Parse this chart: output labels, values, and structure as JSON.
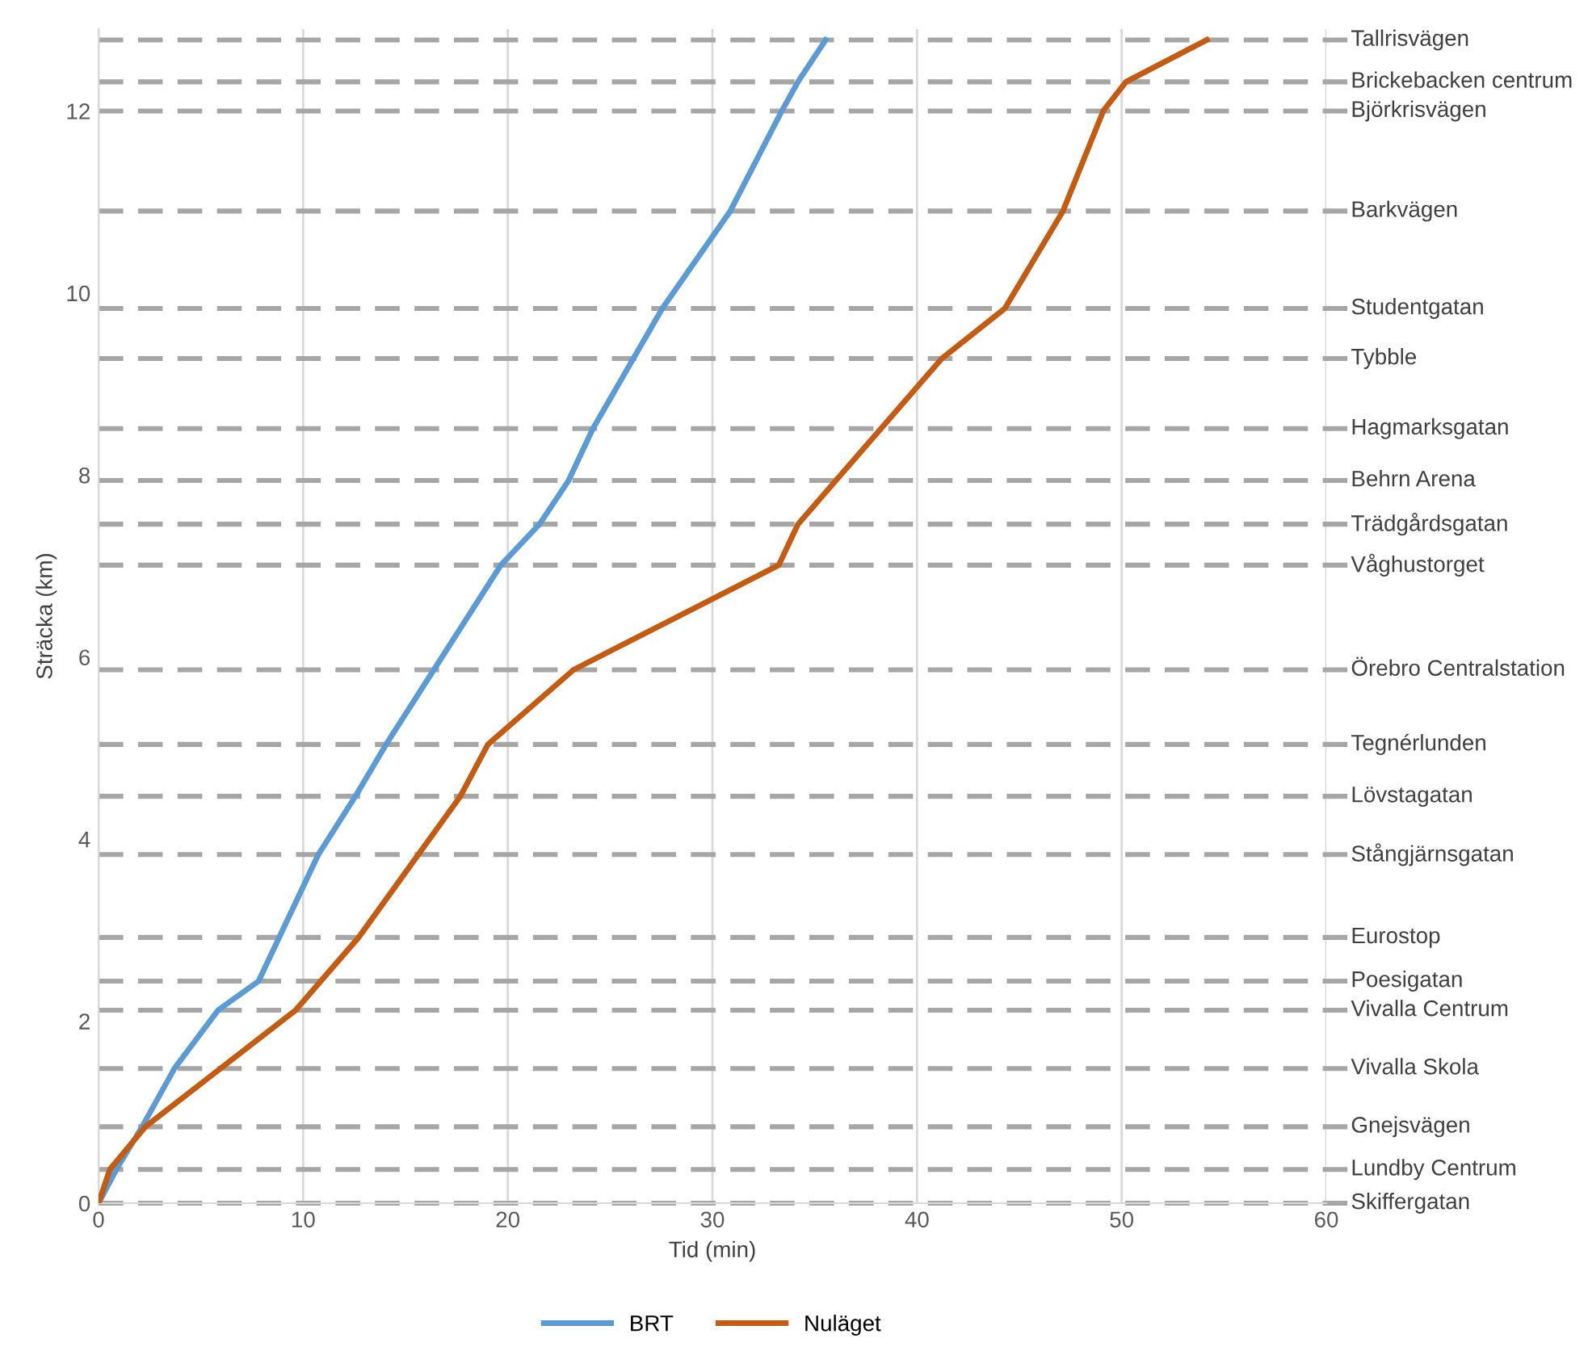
{
  "chart_data": {
    "type": "line",
    "xlabel": "Tid (min)",
    "ylabel": "Sträcka (km)",
    "xlim": [
      0,
      60
    ],
    "xticks": [
      0,
      10,
      20,
      30,
      40,
      50,
      60
    ],
    "ylim": [
      0,
      12.9
    ],
    "yticks": [
      0,
      2,
      4,
      6,
      8,
      10,
      12
    ],
    "grid": "x",
    "legend": "bottom",
    "line_style": "solid",
    "marker": "none",
    "series": [
      {
        "name": "BRT",
        "color": "#5b9bd5",
        "x": [
          0,
          0.87,
          2.13,
          3.71,
          5.84,
          7.82,
          10.74,
          12.55,
          14.05,
          19.66,
          21.55,
          22.97,
          24.16,
          27.55,
          30.87,
          33.39,
          34.18,
          35.53
        ],
        "values": [
          0,
          0.37,
          0.84,
          1.48,
          2.12,
          2.44,
          3.83,
          4.47,
          5.04,
          7.01,
          7.46,
          7.94,
          8.51,
          9.83,
          10.9,
          12.0,
          12.32,
          12.78
        ]
      },
      {
        "name": "Nuläget",
        "color": "#c55a11",
        "x": [
          0,
          0.55,
          2.29,
          9.63,
          12.71,
          17.68,
          19.03,
          23.21,
          33.24,
          34.18,
          41.21,
          44.29,
          47.13,
          49.1,
          50.21,
          54.16
        ],
        "values": [
          0,
          0.37,
          0.84,
          2.12,
          2.92,
          4.47,
          5.04,
          5.86,
          7.01,
          7.46,
          9.28,
          9.83,
          10.9,
          12.0,
          12.32,
          12.78
        ]
      }
    ],
    "ref_lines": [
      {
        "axis": "y",
        "value": 12.78,
        "label": "Tallrisvägen",
        "color": "#a6a6a6",
        "line_style": "dashed"
      },
      {
        "axis": "y",
        "value": 12.32,
        "label": "Brickebacken centrum",
        "color": "#a6a6a6",
        "line_style": "dashed"
      },
      {
        "axis": "y",
        "value": 12.0,
        "label": "Björkrisvägen",
        "color": "#a6a6a6",
        "line_style": "dashed"
      },
      {
        "axis": "y",
        "value": 10.9,
        "label": "Barkvägen",
        "color": "#a6a6a6",
        "line_style": "dashed"
      },
      {
        "axis": "y",
        "value": 9.83,
        "label": "Studentgatan",
        "color": "#a6a6a6",
        "line_style": "dashed"
      },
      {
        "axis": "y",
        "value": 9.28,
        "label": "Tybble",
        "color": "#a6a6a6",
        "line_style": "dashed"
      },
      {
        "axis": "y",
        "value": 8.51,
        "label": "Hagmarksgatan",
        "color": "#a6a6a6",
        "line_style": "dashed"
      },
      {
        "axis": "y",
        "value": 7.94,
        "label": "Behrn Arena",
        "color": "#a6a6a6",
        "line_style": "dashed"
      },
      {
        "axis": "y",
        "value": 7.46,
        "label": "Trädgårdsgatan",
        "color": "#a6a6a6",
        "line_style": "dashed"
      },
      {
        "axis": "y",
        "value": 7.01,
        "label": "Våghustorget",
        "color": "#a6a6a6",
        "line_style": "dashed"
      },
      {
        "axis": "y",
        "value": 5.86,
        "label": "Örebro Centralstation",
        "color": "#a6a6a6",
        "line_style": "dashed"
      },
      {
        "axis": "y",
        "value": 5.04,
        "label": "Tegnérlunden",
        "color": "#a6a6a6",
        "line_style": "dashed"
      },
      {
        "axis": "y",
        "value": 4.47,
        "label": "Lövstagatan",
        "color": "#a6a6a6",
        "line_style": "dashed"
      },
      {
        "axis": "y",
        "value": 3.83,
        "label": "Stångjärnsgatan",
        "color": "#a6a6a6",
        "line_style": "dashed"
      },
      {
        "axis": "y",
        "value": 2.92,
        "label": "Eurostop",
        "color": "#a6a6a6",
        "line_style": "dashed"
      },
      {
        "axis": "y",
        "value": 2.44,
        "label": "Poesigatan",
        "color": "#a6a6a6",
        "line_style": "dashed"
      },
      {
        "axis": "y",
        "value": 2.12,
        "label": "Vivalla Centrum",
        "color": "#a6a6a6",
        "line_style": "dashed"
      },
      {
        "axis": "y",
        "value": 1.48,
        "label": "Vivalla Skola",
        "color": "#a6a6a6",
        "line_style": "dashed"
      },
      {
        "axis": "y",
        "value": 0.84,
        "label": "Gnejsvägen",
        "color": "#a6a6a6",
        "line_style": "dashed"
      },
      {
        "axis": "y",
        "value": 0.37,
        "label": "Lundby Centrum",
        "color": "#a6a6a6",
        "line_style": "dashed"
      },
      {
        "axis": "y",
        "value": 0,
        "label": "Skiffergatan",
        "color": "#a6a6a6",
        "line_style": "dashed"
      }
    ]
  }
}
